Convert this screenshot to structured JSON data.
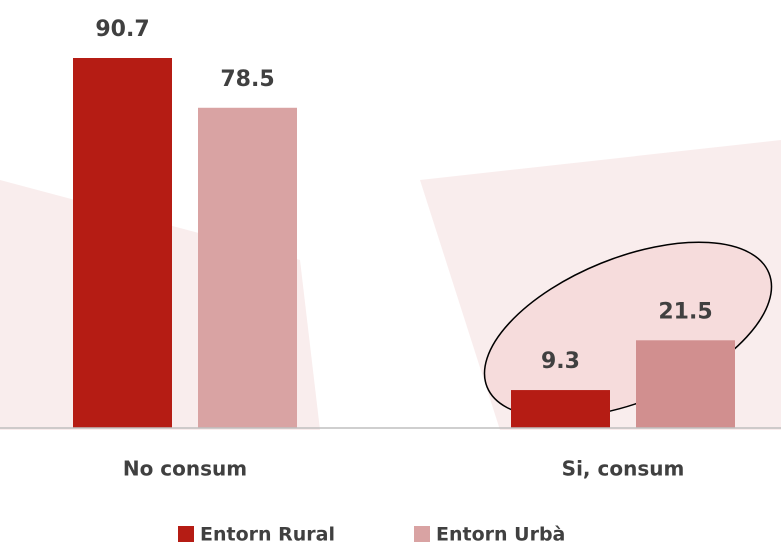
{
  "chart_data": {
    "type": "bar",
    "categories": [
      "No consum",
      "Si, consum"
    ],
    "series": [
      {
        "name": "Entorn Rural",
        "color": "#b51c14",
        "values": [
          90.7,
          9.3
        ]
      },
      {
        "name": "Entorn Urbà",
        "color": "#d9a3a3",
        "values": [
          78.5,
          21.5
        ]
      }
    ]
  }
}
